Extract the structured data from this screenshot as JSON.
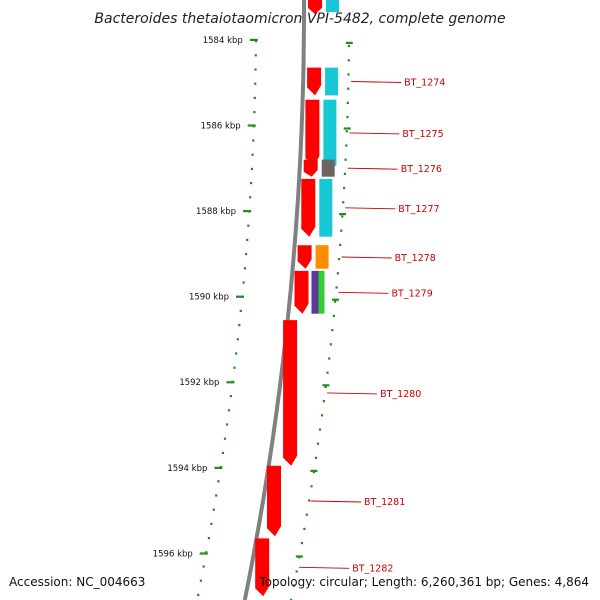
{
  "title": "Bacteroides thetaiotaomicron VPI-5482, complete genome",
  "footer": {
    "accession": "Accession: NC_004663",
    "summary": "Topology: circular; Length: 6,260,361 bp; Genes: 4,864"
  },
  "colors": {
    "backbone": "#808080",
    "gene_fill": "#ff0000",
    "gene_label": "#cc0000",
    "tick": "#228b22",
    "cog_cyan": "#18c8d4",
    "cog_gray": "#6e6262",
    "cog_orange": "#ff8c00",
    "cog_purple": "#5a3a9a",
    "cog_green": "#32cd32"
  },
  "scale": {
    "unit": "kbp",
    "labels": [
      {
        "kbp": 1584,
        "text": "1584 kbp"
      },
      {
        "kbp": 1586,
        "text": "1586 kbp"
      },
      {
        "kbp": 1588,
        "text": "1588 kbp"
      },
      {
        "kbp": 1590,
        "text": "1590 kbp"
      },
      {
        "kbp": 1592,
        "text": "1592 kbp"
      },
      {
        "kbp": 1594,
        "text": "1594 kbp"
      },
      {
        "kbp": 1596,
        "text": "1596 kbp"
      }
    ]
  },
  "genes": [
    {
      "id": "BT_1274",
      "start_kbp": 1584.65,
      "end_kbp": 1585.3,
      "strand": "-",
      "cog": "cyan"
    },
    {
      "id": "BT_1275",
      "start_kbp": 1585.4,
      "end_kbp": 1586.95,
      "strand": "-",
      "cog": "cyan"
    },
    {
      "id": "BT_1276",
      "start_kbp": 1586.8,
      "end_kbp": 1587.2,
      "strand": "-",
      "cog": "gray"
    },
    {
      "id": "BT_1277",
      "start_kbp": 1587.25,
      "end_kbp": 1588.6,
      "strand": "-",
      "cog": "cyan"
    },
    {
      "id": "BT_1278",
      "start_kbp": 1588.8,
      "end_kbp": 1589.35,
      "strand": "-",
      "cog": "orange"
    },
    {
      "id": "BT_1279",
      "start_kbp": 1589.4,
      "end_kbp": 1590.4,
      "strand": "-",
      "cog": "purple-green"
    },
    {
      "id": "BT_1280",
      "start_kbp": 1590.55,
      "end_kbp": 1593.95,
      "strand": "-",
      "cog": "none"
    },
    {
      "id": "BT_1281",
      "start_kbp": 1593.95,
      "end_kbp": 1595.6,
      "strand": "-",
      "cog": "none"
    },
    {
      "id": "BT_1282",
      "start_kbp": 1595.65,
      "end_kbp": 1597.0,
      "strand": "-",
      "cog": "none"
    }
  ]
}
